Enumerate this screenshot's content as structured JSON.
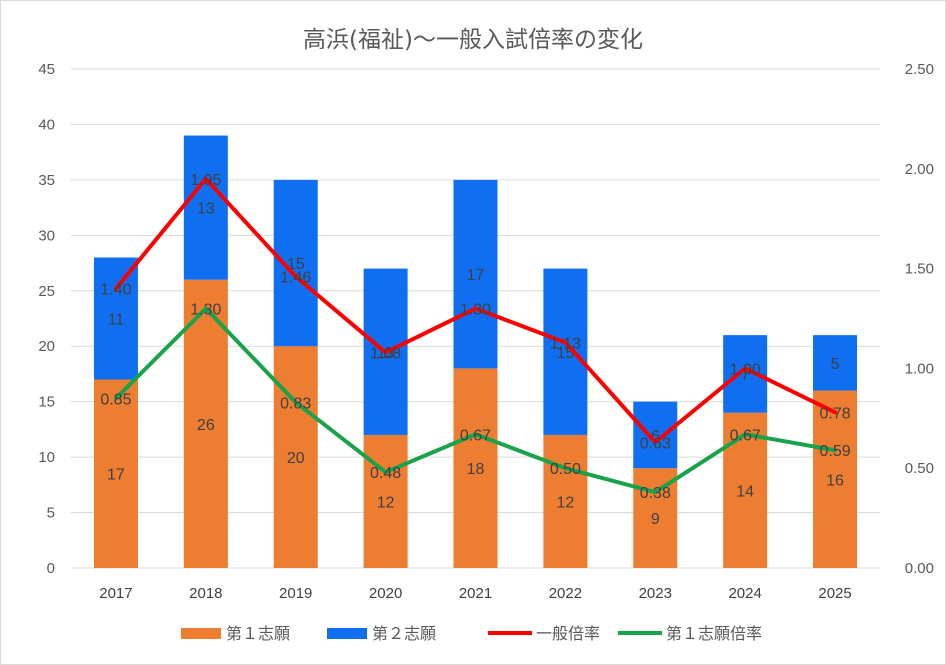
{
  "chart_data": {
    "type": "bar",
    "title": "高浜(福祉)〜一般入試倍率の変化",
    "categories": [
      "2017",
      "2018",
      "2019",
      "2020",
      "2021",
      "2022",
      "2023",
      "2024",
      "2025"
    ],
    "series": [
      {
        "name": "第１志願",
        "kind": "bar",
        "stack": true,
        "axis": "left",
        "color": "#ed7d31",
        "values": [
          17,
          26,
          20,
          12,
          18,
          12,
          9,
          14,
          16
        ],
        "label_color": "#404040"
      },
      {
        "name": "第２志願",
        "kind": "bar",
        "stack": true,
        "axis": "left",
        "color": "#0f6ff0",
        "values": [
          11,
          13,
          15,
          15,
          17,
          15,
          6,
          7,
          5
        ],
        "label_color": "#404040"
      },
      {
        "name": "一般倍率",
        "kind": "line",
        "axis": "right",
        "color": "#ff0000",
        "values": [
          1.4,
          1.95,
          1.46,
          1.08,
          1.3,
          1.13,
          0.63,
          1.0,
          0.78
        ],
        "labels": [
          "1.40",
          "1.95",
          "1.46",
          "1.08",
          "1.30",
          "1.13",
          "0.63",
          "1.00",
          "0.78"
        ],
        "label_color": "#404040"
      },
      {
        "name": "第１志願倍率",
        "kind": "line",
        "axis": "right",
        "color": "#17a34a",
        "values": [
          0.85,
          1.3,
          0.83,
          0.48,
          0.67,
          0.5,
          0.38,
          0.67,
          0.59
        ],
        "labels": [
          "0.85",
          "1.30",
          "0.83",
          "0.48",
          "0.67",
          "0.50",
          "0.38",
          "0.67",
          "0.59"
        ],
        "label_color": "#ffff00"
      }
    ],
    "y_left": {
      "min": 0,
      "max": 45,
      "step": 5,
      "ticks": [
        "0",
        "5",
        "10",
        "15",
        "20",
        "25",
        "30",
        "35",
        "40",
        "45"
      ]
    },
    "y_right": {
      "min": 0,
      "max": 2.5,
      "step": 0.5,
      "ticks": [
        "0.00",
        "0.50",
        "1.00",
        "1.50",
        "2.00",
        "2.50"
      ]
    },
    "grid": true,
    "legend_position": "bottom"
  }
}
